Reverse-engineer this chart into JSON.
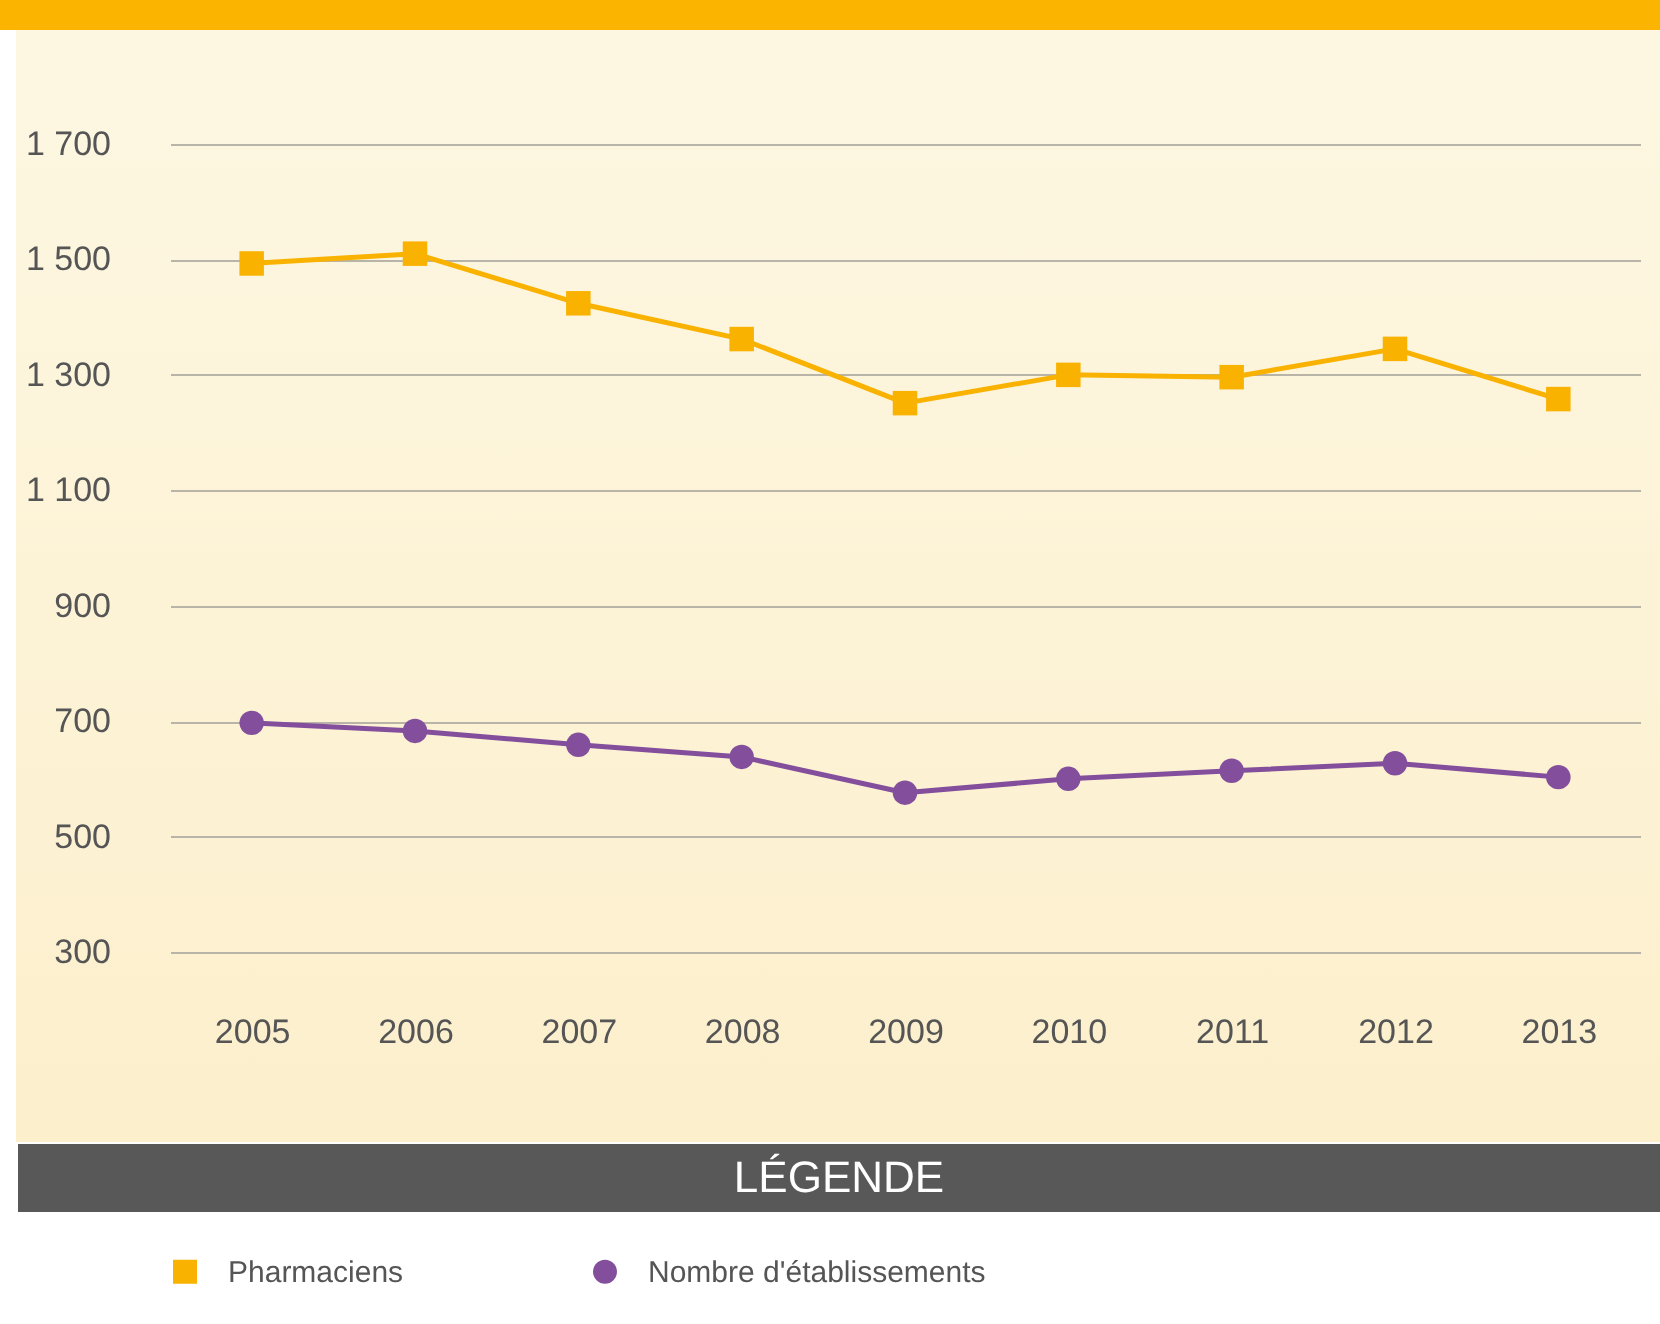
{
  "chart_data": {
    "type": "line",
    "legend_title": "LÉGENDE",
    "categories": [
      "2005",
      "2006",
      "2007",
      "2008",
      "2009",
      "2010",
      "2011",
      "2012",
      "2013"
    ],
    "series": [
      {
        "name": "Pharmaciens",
        "color": "#f9b200",
        "marker": "square",
        "values": [
          1493,
          1510,
          1424,
          1362,
          1251,
          1300,
          1296,
          1345,
          1258
        ]
      },
      {
        "name": "Nombre d'établissements",
        "color": "#834f9c",
        "marker": "circle",
        "values": [
          697,
          683,
          659,
          638,
          576,
          600,
          614,
          627,
          603
        ]
      }
    ],
    "ylim": [
      300,
      1700
    ],
    "yticks": [
      {
        "value": 300,
        "label": "300"
      },
      {
        "value": 500,
        "label": "500"
      },
      {
        "value": 700,
        "label": "700"
      },
      {
        "value": 900,
        "label": "900"
      },
      {
        "value": 1100,
        "label": "1 100"
      },
      {
        "value": 1300,
        "label": "1 300"
      },
      {
        "value": 1500,
        "label": "1 500"
      },
      {
        "value": 1700,
        "label": "1 700"
      }
    ],
    "grid": "y",
    "legend": "bottom",
    "line_style": "solid"
  }
}
